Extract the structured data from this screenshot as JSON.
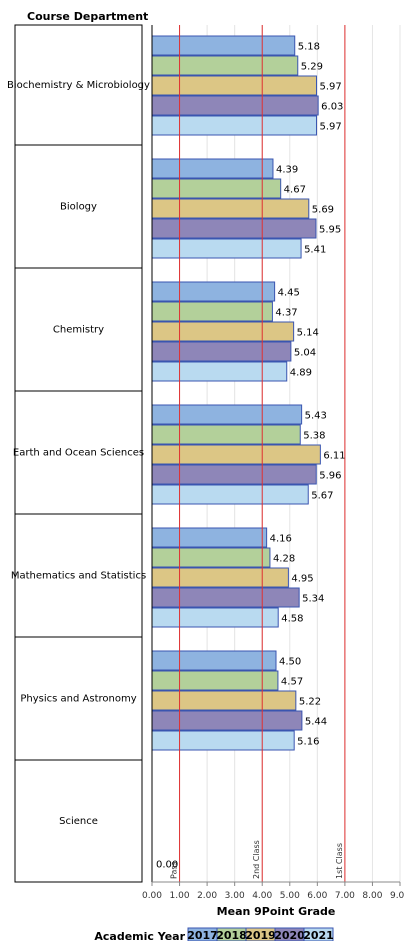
{
  "chart_data": {
    "type": "bar",
    "orientation": "horizontal",
    "row_header": "Course Department",
    "xlabel": "Mean 9Point Grade",
    "xlim": [
      0,
      9
    ],
    "xticks": [
      "0.00",
      "1.00",
      "2.00",
      "3.00",
      "4.00",
      "5.00",
      "6.00",
      "7.00",
      "8.00",
      "9.00"
    ],
    "grid": true,
    "legend": {
      "title": "Academic Year",
      "position": "bottom-center"
    },
    "categories": [
      "Biochemistry & Microbiology",
      "Biology",
      "Chemistry",
      "Earth and Ocean Sciences",
      "Mathematics and Statistics",
      "Physics and Astronomy",
      "Science"
    ],
    "series": [
      {
        "name": "2017",
        "color": "#8eb3e0",
        "values": [
          5.18,
          4.39,
          4.45,
          5.43,
          4.16,
          4.5,
          null
        ],
        "labels": [
          "5.18",
          "4.39",
          "4.45",
          "5.43",
          "4.16",
          "4.50",
          ""
        ]
      },
      {
        "name": "2018",
        "color": "#b3d09a",
        "values": [
          5.29,
          4.67,
          4.37,
          5.38,
          4.28,
          4.57,
          null
        ],
        "labels": [
          "5.29",
          "4.67",
          "4.37",
          "5.38",
          "4.28",
          "4.57",
          ""
        ]
      },
      {
        "name": "2019",
        "color": "#dcc685",
        "values": [
          5.97,
          5.69,
          5.14,
          6.11,
          4.95,
          5.22,
          null
        ],
        "labels": [
          "5.97",
          "5.69",
          "5.14",
          "6.11",
          "4.95",
          "5.22",
          ""
        ]
      },
      {
        "name": "2020",
        "color": "#8e86b8",
        "values": [
          6.03,
          5.95,
          5.04,
          5.96,
          5.34,
          5.44,
          null
        ],
        "labels": [
          "6.03",
          "5.95",
          "5.04",
          "5.96",
          "5.34",
          "5.44",
          ""
        ]
      },
      {
        "name": "2021",
        "color": "#b9daf0",
        "values": [
          5.97,
          5.41,
          4.89,
          5.67,
          4.58,
          5.16,
          0.0
        ],
        "labels": [
          "5.97",
          "5.41",
          "4.89",
          "5.67",
          "4.58",
          "5.16",
          "0.00"
        ]
      }
    ],
    "reference_lines": [
      {
        "value": 1,
        "label": "Pass",
        "color": "#e03030"
      },
      {
        "value": 4,
        "label": "2nd Class",
        "color": "#e03030"
      },
      {
        "value": 7,
        "label": "1st Class",
        "color": "#e03030"
      }
    ],
    "bar_border_color": "#3a55b0"
  }
}
